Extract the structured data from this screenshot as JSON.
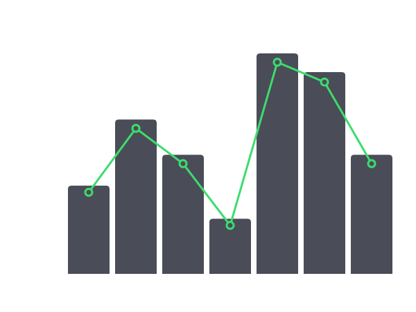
{
  "chart_data": {
    "type": "bar",
    "ylim": [
      0,
      100
    ],
    "series": [
      {
        "type": "bar",
        "color": "#4a4d57",
        "values": [
          40,
          70,
          54,
          25,
          100,
          91.5,
          54
        ]
      },
      {
        "type": "line",
        "color": "#3ddc6e",
        "values": [
          37,
          66,
          50,
          22,
          96,
          87,
          50
        ]
      }
    ]
  }
}
